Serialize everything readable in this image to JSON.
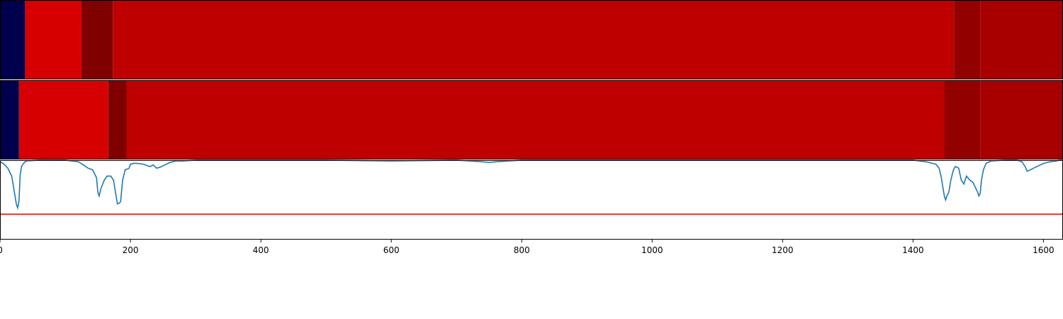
{
  "chart_data": {
    "type": "heatmap",
    "x_range": [
      0,
      1630
    ],
    "segment_rows": [
      {
        "segments": [
          {
            "start": 0,
            "end": 38,
            "color": "#00004c"
          },
          {
            "start": 38,
            "end": 125,
            "color": "#d60000"
          },
          {
            "start": 125,
            "end": 173,
            "color": "#800000"
          },
          {
            "start": 173,
            "end": 1463,
            "color": "#bf0000"
          },
          {
            "start": 1463,
            "end": 1503,
            "color": "#930000"
          },
          {
            "start": 1503,
            "end": 1630,
            "color": "#a80000"
          }
        ]
      },
      {
        "segments": [
          {
            "start": 0,
            "end": 29,
            "color": "#00004c"
          },
          {
            "start": 29,
            "end": 166,
            "color": "#d60000"
          },
          {
            "start": 166,
            "end": 194,
            "color": "#800000"
          },
          {
            "start": 194,
            "end": 1448,
            "color": "#bf0000"
          },
          {
            "start": 1448,
            "end": 1503,
            "color": "#930000"
          },
          {
            "start": 1503,
            "end": 1630,
            "color": "#a80000"
          }
        ]
      }
    ],
    "line_panel": {
      "ylim": [
        0,
        1
      ],
      "threshold": 0.32,
      "threshold_color": "#e00000",
      "line_color": "#1f77b4",
      "series": {
        "x": [
          0,
          5,
          12,
          18,
          22,
          25,
          27,
          29,
          31,
          33,
          36,
          40,
          60,
          100,
          120,
          128,
          135,
          142,
          148,
          150,
          152,
          155,
          160,
          164,
          170,
          174,
          177,
          180,
          183,
          185,
          188,
          192,
          196,
          198,
          200,
          205,
          210,
          220,
          230,
          235,
          240,
          245,
          250,
          260,
          270,
          280,
          300,
          400,
          500,
          600,
          700,
          740,
          750,
          760,
          800,
          1000,
          1200,
          1300,
          1400,
          1420,
          1435,
          1440,
          1443,
          1446,
          1448,
          1450,
          1452,
          1455,
          1458,
          1462,
          1465,
          1470,
          1474,
          1478,
          1482,
          1487,
          1492,
          1496,
          1499,
          1501,
          1503,
          1505,
          1508,
          1512,
          1520,
          1540,
          1560,
          1567,
          1572,
          1575,
          1580,
          1590,
          1600,
          1610,
          1620,
          1625,
          1630
        ],
        "y": [
          0.98,
          0.96,
          0.9,
          0.8,
          0.6,
          0.45,
          0.4,
          0.48,
          0.82,
          0.92,
          0.96,
          0.99,
          1.0,
          1.0,
          0.98,
          0.94,
          0.9,
          0.88,
          0.78,
          0.6,
          0.55,
          0.65,
          0.75,
          0.8,
          0.8,
          0.75,
          0.6,
          0.45,
          0.46,
          0.48,
          0.75,
          0.88,
          0.89,
          0.9,
          0.95,
          0.96,
          0.96,
          0.95,
          0.92,
          0.94,
          0.9,
          0.91,
          0.93,
          0.97,
          0.99,
          0.99,
          1.0,
          1.0,
          1.0,
          0.99,
          1.0,
          0.98,
          0.97,
          0.98,
          1.0,
          1.0,
          1.0,
          1.0,
          1.0,
          0.98,
          0.95,
          0.9,
          0.8,
          0.65,
          0.55,
          0.5,
          0.55,
          0.6,
          0.75,
          0.88,
          0.92,
          0.9,
          0.75,
          0.7,
          0.8,
          0.75,
          0.72,
          0.65,
          0.6,
          0.55,
          0.58,
          0.75,
          0.88,
          0.96,
          0.99,
          1.0,
          1.0,
          0.98,
          0.92,
          0.86,
          0.88,
          0.92,
          0.96,
          0.98,
          0.99,
          1.0,
          1.0
        ]
      }
    },
    "x_ticks": [
      0,
      200,
      400,
      600,
      800,
      1000,
      1200,
      1400,
      1600
    ],
    "x_tick_labels": [
      "0",
      "200",
      "400",
      "600",
      "800",
      "1000",
      "1200",
      "1400",
      "1600"
    ]
  }
}
